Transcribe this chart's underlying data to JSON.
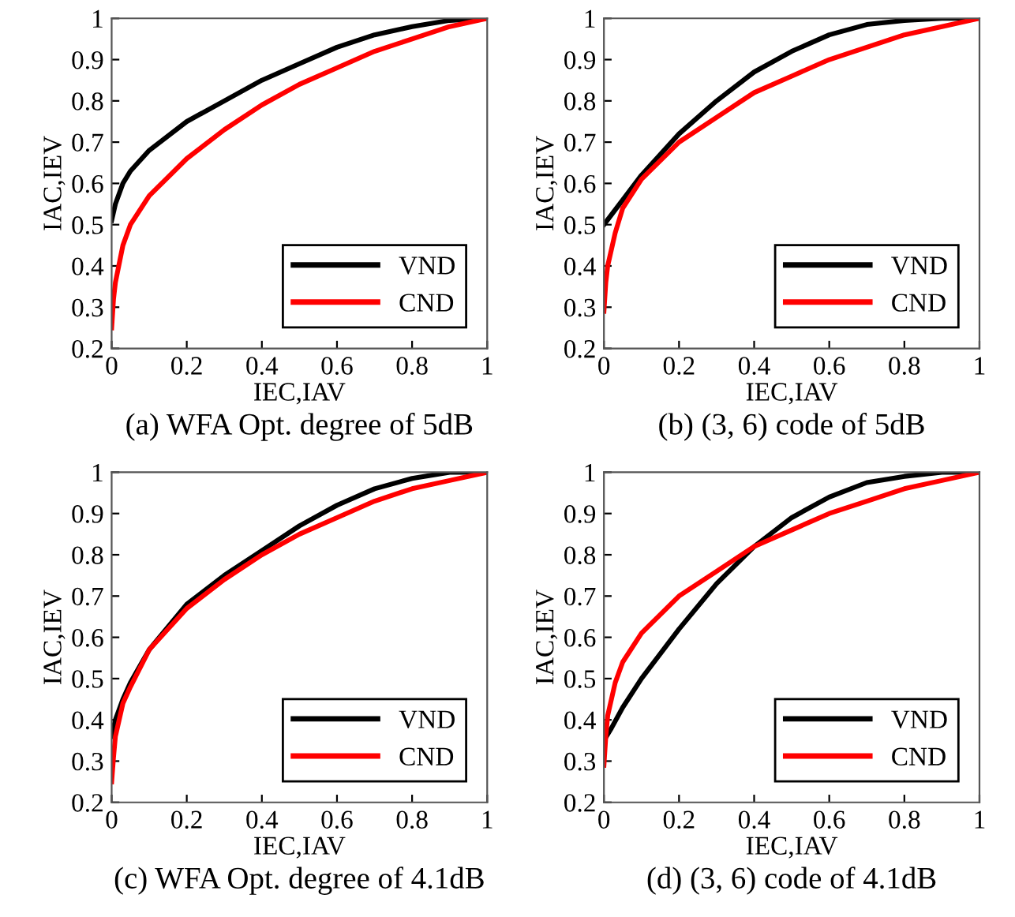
{
  "chart_data": [
    {
      "type": "line",
      "title": "(a) WFA Opt. degree of 5dB",
      "xlabel": "IEC,IAV",
      "ylabel": "IAC,IEV",
      "xlim": [
        0,
        1
      ],
      "ylim": [
        0.2,
        1
      ],
      "xticks": [
        0,
        0.2,
        0.4,
        0.6,
        0.8,
        1
      ],
      "yticks": [
        0.2,
        0.3,
        0.4,
        0.5,
        0.6,
        0.7,
        0.8,
        0.9,
        1
      ],
      "legend": "bottom right",
      "grid": false,
      "marker": "none",
      "line_style": "solid",
      "series": [
        {
          "name": "VND",
          "color": "#000000",
          "x": [
            0,
            0.01,
            0.03,
            0.05,
            0.1,
            0.2,
            0.3,
            0.4,
            0.5,
            0.6,
            0.7,
            0.8,
            0.9,
            1
          ],
          "values": [
            0.51,
            0.55,
            0.6,
            0.63,
            0.68,
            0.75,
            0.8,
            0.85,
            0.89,
            0.93,
            0.96,
            0.98,
            0.995,
            1
          ]
        },
        {
          "name": "CND",
          "color": "#ff0000",
          "x": [
            0,
            0.005,
            0.01,
            0.03,
            0.05,
            0.1,
            0.2,
            0.3,
            0.4,
            0.5,
            0.6,
            0.7,
            0.8,
            0.9,
            1
          ],
          "values": [
            0.25,
            0.32,
            0.36,
            0.45,
            0.5,
            0.57,
            0.66,
            0.73,
            0.79,
            0.84,
            0.88,
            0.92,
            0.95,
            0.98,
            1
          ]
        }
      ]
    },
    {
      "type": "line",
      "title": "(b) (3, 6) code of 5dB",
      "xlabel": "IEC,IAV",
      "ylabel": "IAC,IEV",
      "xlim": [
        0,
        1
      ],
      "ylim": [
        0.2,
        1
      ],
      "xticks": [
        0,
        0.2,
        0.4,
        0.6,
        0.8,
        1
      ],
      "yticks": [
        0.2,
        0.3,
        0.4,
        0.5,
        0.6,
        0.7,
        0.8,
        0.9,
        1
      ],
      "legend": "bottom right",
      "grid": false,
      "marker": "none",
      "line_style": "solid",
      "series": [
        {
          "name": "VND",
          "color": "#000000",
          "x": [
            0,
            0.05,
            0.1,
            0.2,
            0.3,
            0.4,
            0.5,
            0.6,
            0.7,
            0.8,
            0.9,
            1
          ],
          "values": [
            0.5,
            0.56,
            0.62,
            0.72,
            0.8,
            0.87,
            0.92,
            0.96,
            0.985,
            0.995,
            1,
            1
          ]
        },
        {
          "name": "CND",
          "color": "#ff0000",
          "x": [
            0,
            0.005,
            0.01,
            0.03,
            0.05,
            0.1,
            0.2,
            0.3,
            0.4,
            0.5,
            0.6,
            0.7,
            0.8,
            0.9,
            1
          ],
          "values": [
            0.29,
            0.36,
            0.4,
            0.48,
            0.54,
            0.61,
            0.7,
            0.76,
            0.82,
            0.86,
            0.9,
            0.93,
            0.96,
            0.98,
            1
          ]
        }
      ]
    },
    {
      "type": "line",
      "title": "(c) WFA Opt. degree of 4.1dB",
      "xlabel": "IEC,IAV",
      "ylabel": "IAC,IEV",
      "xlim": [
        0,
        1
      ],
      "ylim": [
        0.2,
        1
      ],
      "xticks": [
        0,
        0.2,
        0.4,
        0.6,
        0.8,
        1
      ],
      "yticks": [
        0.2,
        0.3,
        0.4,
        0.5,
        0.6,
        0.7,
        0.8,
        0.9,
        1
      ],
      "legend": "bottom right",
      "grid": false,
      "marker": "none",
      "line_style": "solid",
      "series": [
        {
          "name": "VND",
          "color": "#000000",
          "x": [
            0,
            0.01,
            0.03,
            0.05,
            0.1,
            0.2,
            0.3,
            0.4,
            0.5,
            0.6,
            0.7,
            0.8,
            0.9,
            1
          ],
          "values": [
            0.36,
            0.4,
            0.45,
            0.49,
            0.57,
            0.68,
            0.75,
            0.81,
            0.87,
            0.92,
            0.96,
            0.985,
            1,
            1
          ]
        },
        {
          "name": "CND",
          "color": "#ff0000",
          "x": [
            0,
            0.005,
            0.01,
            0.03,
            0.05,
            0.1,
            0.2,
            0.3,
            0.4,
            0.5,
            0.6,
            0.7,
            0.8,
            0.9,
            1
          ],
          "values": [
            0.25,
            0.31,
            0.36,
            0.44,
            0.48,
            0.57,
            0.67,
            0.74,
            0.8,
            0.85,
            0.89,
            0.93,
            0.96,
            0.98,
            1
          ]
        }
      ]
    },
    {
      "type": "line",
      "title": "(d) (3, 6) code of 4.1dB",
      "xlabel": "IEC,IAV",
      "ylabel": "IAC,IEV",
      "xlim": [
        0,
        1
      ],
      "ylim": [
        0.2,
        1
      ],
      "xticks": [
        0,
        0.2,
        0.4,
        0.6,
        0.8,
        1
      ],
      "yticks": [
        0.2,
        0.3,
        0.4,
        0.5,
        0.6,
        0.7,
        0.8,
        0.9,
        1
      ],
      "legend": "bottom right",
      "grid": false,
      "marker": "none",
      "line_style": "solid",
      "series": [
        {
          "name": "VND",
          "color": "#000000",
          "x": [
            0,
            0.02,
            0.05,
            0.1,
            0.2,
            0.3,
            0.4,
            0.5,
            0.6,
            0.7,
            0.8,
            0.9,
            1
          ],
          "values": [
            0.35,
            0.38,
            0.43,
            0.5,
            0.62,
            0.73,
            0.82,
            0.89,
            0.94,
            0.975,
            0.99,
            1,
            1
          ]
        },
        {
          "name": "CND",
          "color": "#ff0000",
          "x": [
            0,
            0.005,
            0.01,
            0.03,
            0.05,
            0.1,
            0.2,
            0.3,
            0.4,
            0.5,
            0.6,
            0.7,
            0.8,
            0.9,
            1
          ],
          "values": [
            0.29,
            0.36,
            0.41,
            0.49,
            0.54,
            0.61,
            0.7,
            0.76,
            0.82,
            0.86,
            0.9,
            0.93,
            0.96,
            0.98,
            1
          ]
        }
      ]
    }
  ]
}
